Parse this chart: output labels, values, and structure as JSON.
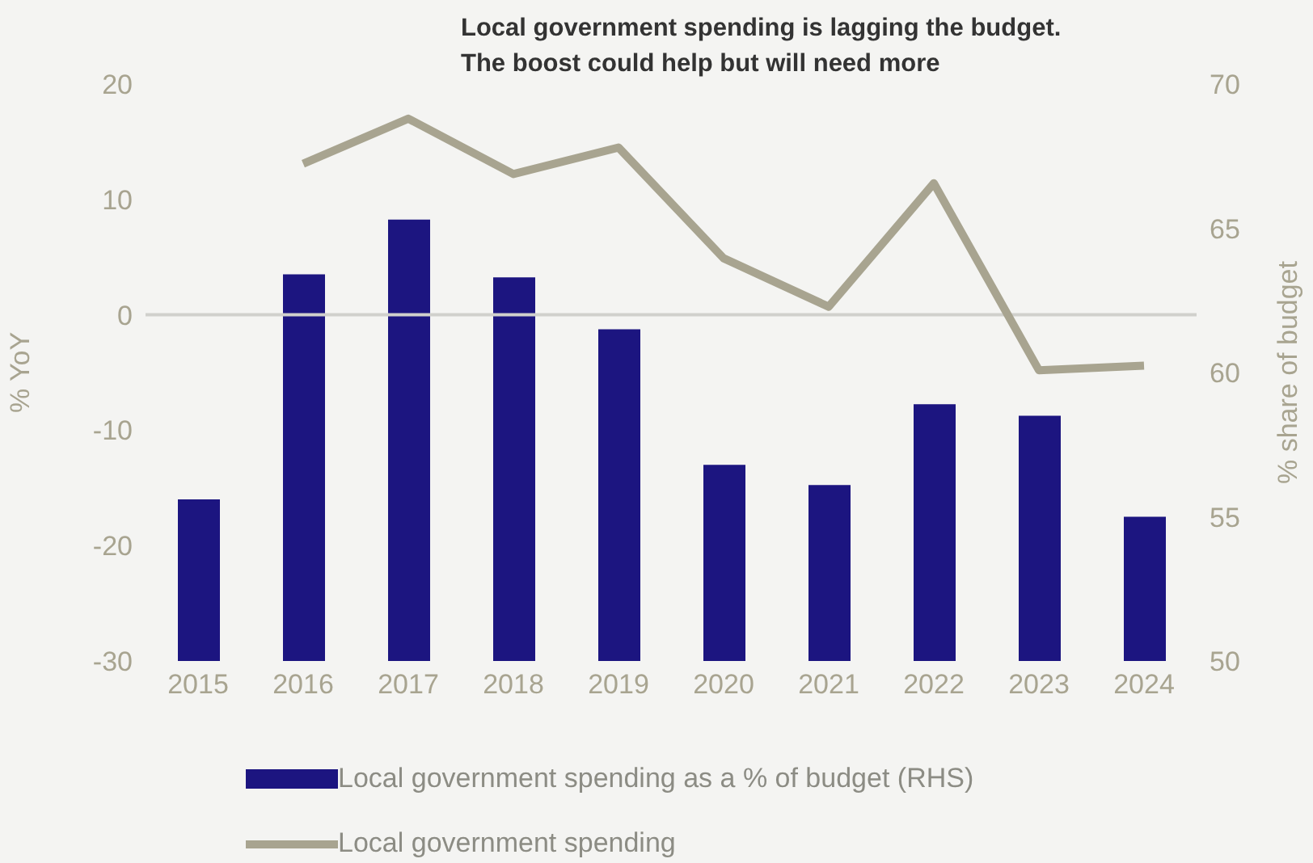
{
  "chart_data": {
    "type": "bar",
    "title": "Local government spending is lagging the budget.\nThe boost could help but will need more",
    "ylabel": "% YoY",
    "y2label": "% share of budget",
    "categories": [
      "2015",
      "2016",
      "2017",
      "2018",
      "2019",
      "2020",
      "2021",
      "2022",
      "2023",
      "2024"
    ],
    "series": [
      {
        "name": "Local government spending as a % of budget (RHS)",
        "axis": "y2",
        "color": "#1c1580",
        "values": [
          55.6,
          63.4,
          65.3,
          63.3,
          61.5,
          56.8,
          56.1,
          58.9,
          58.5,
          55.0
        ]
      },
      {
        "name": "Local government spending",
        "type": "line",
        "color": "#a8a490",
        "values": [
          null,
          13.1,
          17.0,
          12.2,
          14.5,
          4.9,
          0.7,
          11.4,
          -4.8,
          -4.4
        ]
      }
    ],
    "ylim": [
      -30,
      20
    ],
    "yticks": [
      -30,
      -20,
      -10,
      0,
      10,
      20
    ],
    "y2lim": [
      50,
      70
    ],
    "y2ticks": [
      50,
      55,
      60,
      65,
      70
    ],
    "ref_lines": [
      {
        "axis": "y",
        "value": 0,
        "color": "#d0d0cc"
      }
    ],
    "grid": false,
    "legend": "bottom",
    "marker": "none",
    "line_style": "solid"
  }
}
